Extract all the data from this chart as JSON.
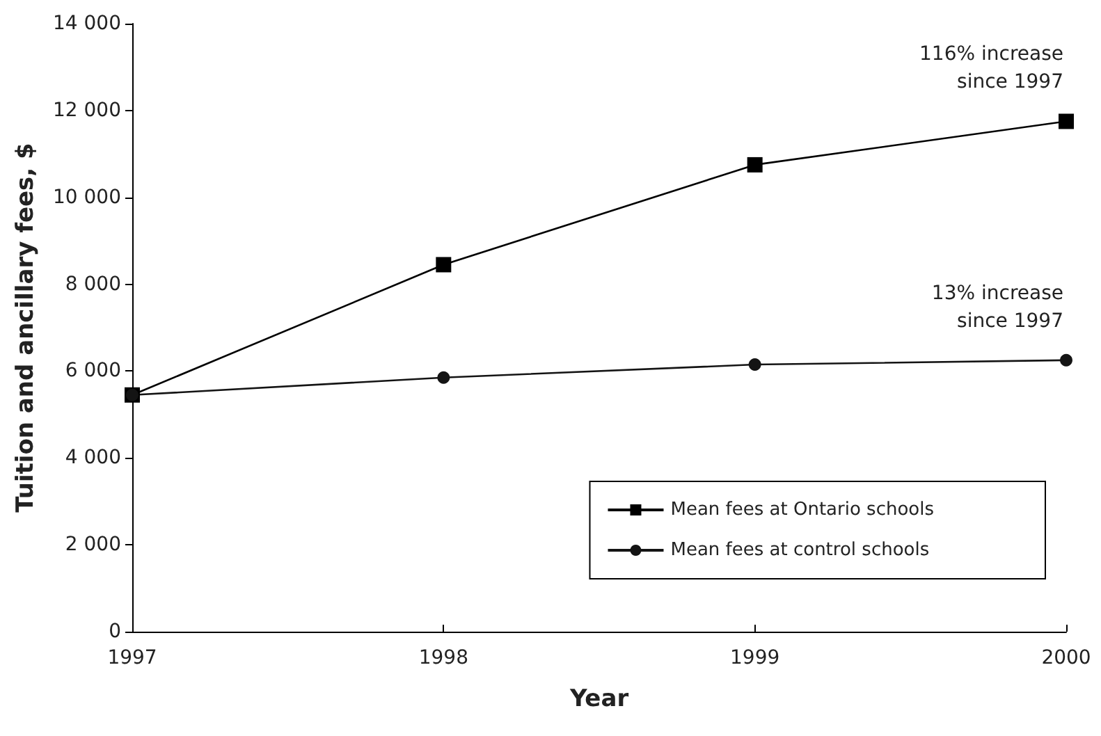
{
  "chart_data": {
    "type": "line",
    "xlabel": "Year",
    "ylabel": "Tuition and ancillary fees, $",
    "x": [
      1997,
      1998,
      1999,
      2000
    ],
    "series": [
      {
        "name": "Mean fees at Ontario schools",
        "color": "#000000",
        "marker": "square",
        "values": [
          5450,
          8450,
          10750,
          11750
        ]
      },
      {
        "name": "Mean fees at control schools",
        "color": "#141414",
        "marker": "circle",
        "values": [
          5450,
          5850,
          6150,
          6250
        ]
      }
    ],
    "xlim": [
      1997,
      2000
    ],
    "xticks": [
      1997,
      1998,
      1999,
      2000
    ],
    "ylim": [
      0,
      14000
    ],
    "yticks": [
      0,
      {
        "value": 2000,
        "label": "2 000"
      },
      {
        "value": 4000,
        "label": "4 000"
      },
      {
        "value": 6000,
        "label": "6 000"
      },
      {
        "value": 8000,
        "label": "8 000"
      },
      {
        "value": 10000,
        "label": "10 000"
      },
      {
        "value": 12000,
        "label": "12 000"
      },
      {
        "value": 14000,
        "label": "14 000"
      }
    ],
    "annotations": [
      {
        "text": "116% increase\nsince 1997",
        "x": 2000,
        "y": 11750
      },
      {
        "text": "13% increase\nsince 1997",
        "x": 2000,
        "y": 6250
      }
    ],
    "grid": false,
    "legend": "bottom right",
    "line_style": "solid"
  }
}
